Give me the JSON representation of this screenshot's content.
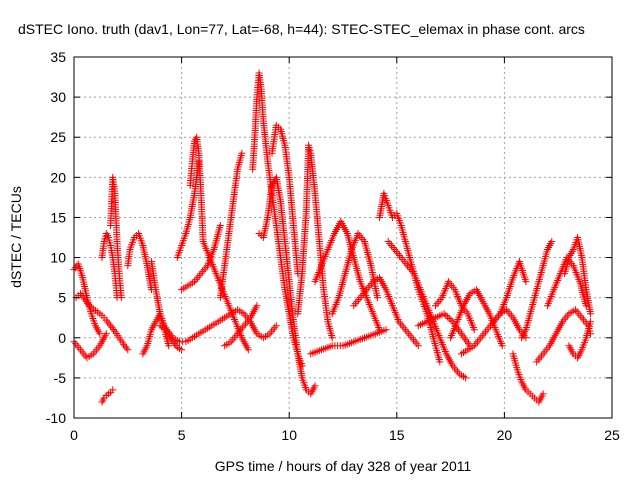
{
  "chart_data": {
    "type": "scatter",
    "title": "dSTEC Iono. truth (dav1, Lon=77, Lat=-68, h=44): STEC-STEC_elemax in phase cont. arcs",
    "xlabel": "GPS time / hours of day 328 of year 2011",
    "ylabel": "dSTEC  / TECUs",
    "xlim": [
      0,
      25
    ],
    "ylim": [
      -10,
      35
    ],
    "xticks": [
      0,
      5,
      10,
      15,
      20,
      25
    ],
    "yticks": [
      -10,
      -5,
      0,
      5,
      10,
      15,
      20,
      25,
      30,
      35
    ],
    "xtick_labels": [
      "0",
      "5",
      "10",
      "15",
      "20",
      "25"
    ],
    "ytick_labels": [
      "-10",
      "-5",
      "0",
      "5",
      "10",
      "15",
      "20",
      "25",
      "30",
      "35"
    ],
    "grid": true,
    "marker": "+",
    "color": "#ff0000",
    "series": [
      {
        "x": [
          0.0,
          0.2,
          0.4,
          0.6,
          0.8,
          1.0,
          1.2
        ],
        "y": [
          8.5,
          9.2,
          7.5,
          5.0,
          3.0,
          1.5,
          0.5
        ]
      },
      {
        "x": [
          0.1,
          0.3,
          0.5,
          0.7,
          0.9,
          1.1,
          1.3,
          1.5,
          1.7,
          1.9,
          2.1,
          2.3,
          2.5
        ],
        "y": [
          5.0,
          5.5,
          4.8,
          4.0,
          3.6,
          3.2,
          2.8,
          2.2,
          1.5,
          0.8,
          0.0,
          -0.8,
          -1.5
        ]
      },
      {
        "x": [
          0.0,
          0.3,
          0.6,
          0.9,
          1.2,
          1.5
        ],
        "y": [
          -0.5,
          -1.5,
          -2.5,
          -2.0,
          -1.0,
          0.5
        ]
      },
      {
        "x": [
          1.3,
          1.4,
          1.5,
          1.6,
          1.7,
          1.8
        ],
        "y": [
          -8.0,
          -7.5,
          -7.2,
          -7.0,
          -6.8,
          -6.5
        ]
      },
      {
        "x": [
          1.3,
          1.4,
          1.5,
          1.6,
          1.7,
          1.8,
          1.9,
          2.0
        ],
        "y": [
          10.0,
          12.0,
          13.0,
          12.5,
          11.5,
          10.0,
          8.0,
          5.0
        ]
      },
      {
        "x": [
          1.7,
          1.75,
          1.8,
          1.9,
          2.0,
          2.1,
          2.2
        ],
        "y": [
          14.0,
          17.0,
          20.0,
          18.0,
          12.0,
          8.0,
          5.0
        ]
      },
      {
        "x": [
          2.5,
          2.6,
          2.8,
          3.0,
          3.2,
          3.4,
          3.6
        ],
        "y": [
          9.0,
          11.0,
          12.5,
          13.0,
          11.5,
          9.0,
          6.0
        ]
      },
      {
        "x": [
          3.2,
          3.4,
          3.6,
          3.8,
          4.0,
          4.2,
          4.4
        ],
        "y": [
          -2.0,
          -1.0,
          1.0,
          2.0,
          3.0,
          1.0,
          -1.0
        ]
      },
      {
        "x": [
          3.6,
          3.8,
          4.0,
          4.2,
          4.4,
          4.6,
          4.8,
          5.0
        ],
        "y": [
          9.5,
          6.0,
          3.0,
          1.5,
          0.5,
          -0.5,
          -1.2,
          -1.5
        ]
      },
      {
        "x": [
          4.0,
          4.3,
          4.6,
          4.9,
          5.2,
          5.5,
          5.8,
          6.1,
          6.4,
          6.7,
          7.0,
          7.3,
          7.6,
          7.9,
          8.2,
          8.5,
          8.8,
          9.1,
          9.4
        ],
        "y": [
          1.5,
          1.0,
          0.0,
          -0.5,
          -0.5,
          0.0,
          0.5,
          1.0,
          1.5,
          2.0,
          2.5,
          3.0,
          3.5,
          3.0,
          2.0,
          0.5,
          0.0,
          0.5,
          1.5
        ]
      },
      {
        "x": [
          4.8,
          5.0,
          5.2,
          5.4,
          5.6,
          5.8
        ],
        "y": [
          10.0,
          11.5,
          13.0,
          15.0,
          18.0,
          22.0
        ]
      },
      {
        "x": [
          5.4,
          5.5,
          5.6,
          5.7,
          5.8,
          5.9,
          6.0
        ],
        "y": [
          19.0,
          22.0,
          24.5,
          25.0,
          23.0,
          18.0,
          12.0
        ]
      },
      {
        "x": [
          5.0,
          5.3,
          5.6,
          5.9,
          6.2,
          6.5,
          6.8
        ],
        "y": [
          6.0,
          6.5,
          7.0,
          8.0,
          9.0,
          11.0,
          14.0
        ]
      },
      {
        "x": [
          6.0,
          6.3,
          6.6,
          6.9,
          7.2,
          7.5,
          7.8,
          8.1
        ],
        "y": [
          12.0,
          10.0,
          8.0,
          6.0,
          4.0,
          2.0,
          0.0,
          -1.5
        ]
      },
      {
        "x": [
          6.8,
          7.0,
          7.2,
          7.4,
          7.6,
          7.8
        ],
        "y": [
          5.0,
          9.0,
          13.0,
          17.0,
          21.0,
          23.0
        ]
      },
      {
        "x": [
          7.0,
          7.3,
          7.6,
          7.9,
          8.2,
          8.5
        ],
        "y": [
          -1.0,
          -0.5,
          0.5,
          1.5,
          2.5,
          4.0
        ]
      },
      {
        "x": [
          8.3,
          8.4,
          8.5,
          8.6,
          8.7,
          8.8,
          9.0,
          9.2,
          9.4,
          9.6,
          9.8,
          10.0,
          10.2,
          10.4,
          10.6
        ],
        "y": [
          21.0,
          25.0,
          30.0,
          33.0,
          31.0,
          27.0,
          22.0,
          18.0,
          14.0,
          10.0,
          6.0,
          3.0,
          0.0,
          -2.0,
          -3.5
        ]
      },
      {
        "x": [
          8.6,
          8.8,
          9.0,
          9.2,
          9.4,
          9.6,
          9.8,
          10.0,
          10.2,
          10.4,
          10.6,
          10.8,
          11.0,
          11.2
        ],
        "y": [
          13.0,
          12.5,
          15.0,
          19.0,
          20.0,
          17.0,
          12.0,
          7.0,
          2.0,
          -2.0,
          -5.0,
          -6.5,
          -7.0,
          -6.0
        ]
      },
      {
        "x": [
          9.2,
          9.4,
          9.6,
          9.8,
          10.0,
          10.2,
          10.4
        ],
        "y": [
          23.0,
          26.5,
          26.0,
          24.0,
          20.0,
          14.0,
          8.0
        ]
      },
      {
        "x": [
          10.4,
          10.6,
          10.8,
          10.9,
          11.0,
          11.2,
          11.4,
          11.6,
          11.8,
          12.0
        ],
        "y": [
          3.0,
          8.0,
          16.0,
          24.0,
          23.0,
          18.0,
          12.0,
          6.0,
          2.0,
          0.0
        ]
      },
      {
        "x": [
          11.2,
          11.5,
          11.8,
          12.1,
          12.4,
          12.7,
          13.0,
          13.3,
          13.6,
          13.9,
          14.2
        ],
        "y": [
          7.0,
          9.0,
          11.0,
          13.0,
          14.5,
          13.0,
          10.0,
          7.0,
          5.0,
          3.0,
          1.0
        ]
      },
      {
        "x": [
          12.0,
          12.3,
          12.6,
          12.9,
          13.2,
          13.5,
          13.8,
          14.1
        ],
        "y": [
          3.0,
          5.0,
          8.0,
          11.0,
          13.0,
          12.0,
          9.0,
          5.0
        ]
      },
      {
        "x": [
          11.0,
          11.5,
          12.0,
          12.5,
          13.0,
          13.5,
          14.0,
          14.5
        ],
        "y": [
          -2.0,
          -1.5,
          -1.0,
          -1.0,
          -0.5,
          0.0,
          0.5,
          1.0
        ]
      },
      {
        "x": [
          13.0,
          13.3,
          13.6,
          13.9,
          14.2,
          14.5,
          14.8,
          15.1,
          15.4,
          15.7,
          16.0
        ],
        "y": [
          4.0,
          5.0,
          6.0,
          7.0,
          7.5,
          6.0,
          4.0,
          2.0,
          1.0,
          0.0,
          -1.0
        ]
      },
      {
        "x": [
          14.2,
          14.4,
          14.6,
          14.8,
          15.0,
          15.2,
          15.4,
          15.6,
          15.8,
          16.0,
          16.2,
          16.4,
          16.6,
          16.8,
          17.0
        ],
        "y": [
          15.0,
          18.0,
          16.5,
          15.0,
          15.5,
          14.0,
          12.0,
          10.0,
          8.0,
          6.0,
          4.5,
          3.0,
          1.0,
          -1.0,
          -3.0
        ]
      },
      {
        "x": [
          14.6,
          14.9,
          15.2,
          15.5,
          15.8,
          16.1,
          16.4,
          16.7,
          17.0,
          17.3,
          17.6,
          17.9,
          18.2
        ],
        "y": [
          12.0,
          11.0,
          10.0,
          9.0,
          8.0,
          6.0,
          4.0,
          2.0,
          0.0,
          -2.0,
          -3.5,
          -4.5,
          -5.0
        ]
      },
      {
        "x": [
          16.0,
          16.4,
          16.8,
          17.2,
          17.6,
          18.0,
          18.4
        ],
        "y": [
          1.5,
          2.0,
          2.5,
          3.0,
          2.0,
          0.5,
          -1.0
        ]
      },
      {
        "x": [
          16.8,
          17.1,
          17.4,
          17.7,
          18.0,
          18.3,
          18.6
        ],
        "y": [
          4.0,
          5.0,
          7.0,
          6.0,
          4.0,
          3.0,
          1.0
        ]
      },
      {
        "x": [
          17.5,
          17.8,
          18.1,
          18.4,
          18.7,
          19.0,
          19.3,
          19.6,
          19.9
        ],
        "y": [
          0.0,
          2.0,
          4.0,
          5.5,
          6.0,
          4.5,
          3.0,
          1.0,
          -1.0
        ]
      },
      {
        "x": [
          18.0,
          18.3,
          18.6,
          18.9,
          19.2,
          19.5,
          19.8,
          20.1,
          20.4,
          20.7,
          21.0
        ],
        "y": [
          -2.0,
          -1.5,
          -1.0,
          0.0,
          1.0,
          2.0,
          3.0,
          3.5,
          2.5,
          1.0,
          0.0
        ]
      },
      {
        "x": [
          19.5,
          19.8,
          20.1,
          20.4,
          20.7,
          21.0
        ],
        "y": [
          2.0,
          3.0,
          5.0,
          7.5,
          9.5,
          7.0
        ]
      },
      {
        "x": [
          20.4,
          20.6,
          20.8,
          21.0,
          21.2,
          21.4,
          21.6,
          21.8
        ],
        "y": [
          -2.0,
          -4.0,
          -5.5,
          -6.5,
          -7.0,
          -7.5,
          -8.0,
          -7.0
        ]
      },
      {
        "x": [
          20.8,
          21.0,
          21.2,
          21.4,
          21.6,
          21.8,
          22.0,
          22.2
        ],
        "y": [
          0.0,
          1.0,
          3.0,
          5.0,
          7.0,
          9.0,
          11.0,
          12.0
        ]
      },
      {
        "x": [
          21.5,
          21.8,
          22.1,
          22.4,
          22.7,
          23.0,
          23.3,
          23.6,
          23.9,
          24.0
        ],
        "y": [
          -3.0,
          -2.0,
          -1.0,
          0.5,
          2.0,
          3.0,
          3.5,
          2.5,
          1.5,
          0.5
        ]
      },
      {
        "x": [
          22.0,
          22.3,
          22.6,
          22.9,
          23.2,
          23.5,
          23.8
        ],
        "y": [
          4.0,
          6.0,
          8.0,
          10.0,
          9.0,
          7.0,
          4.0
        ]
      },
      {
        "x": [
          22.8,
          23.0,
          23.2,
          23.4,
          23.6,
          23.8,
          24.0
        ],
        "y": [
          8.0,
          10.0,
          11.0,
          12.5,
          10.0,
          6.0,
          3.0
        ]
      },
      {
        "x": [
          23.0,
          23.2,
          23.4,
          23.6,
          23.8,
          24.0
        ],
        "y": [
          -1.0,
          -2.0,
          -2.5,
          -1.5,
          0.0,
          2.0
        ]
      }
    ]
  }
}
